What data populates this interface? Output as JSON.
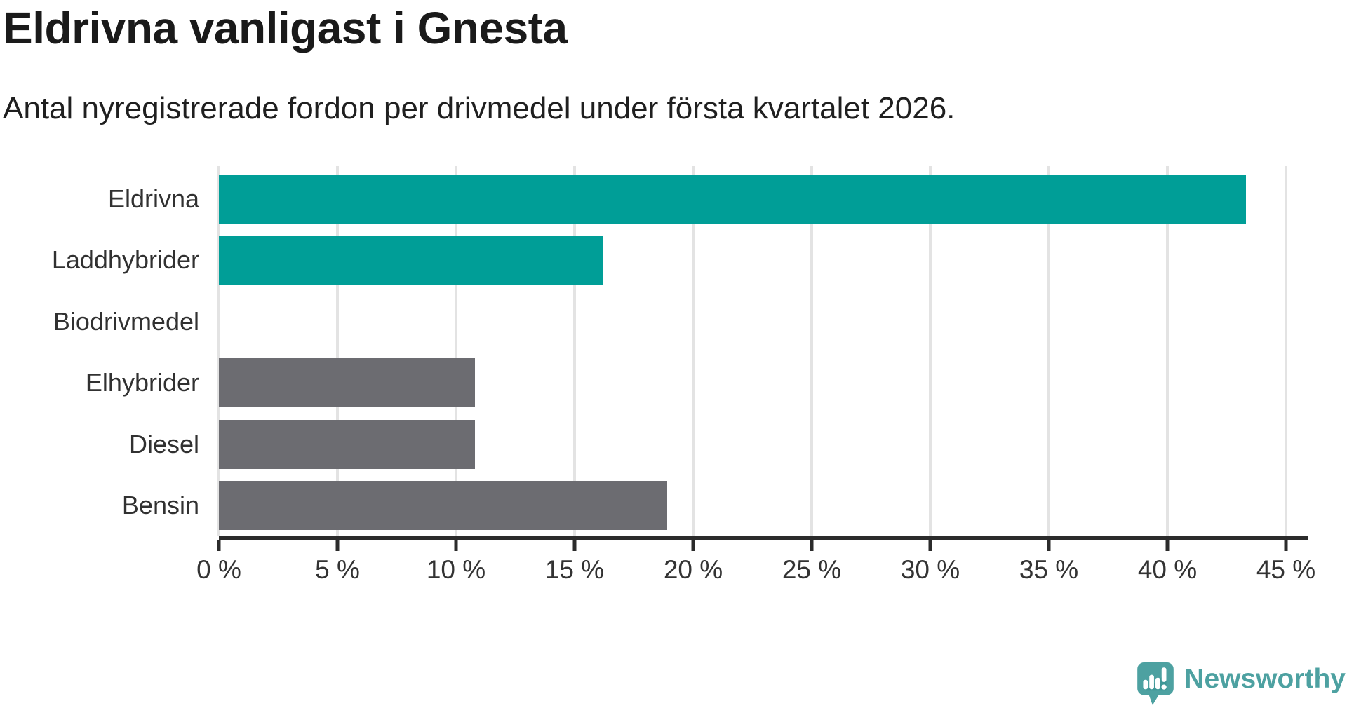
{
  "header": {
    "title": "Eldrivna vanligast i Gnesta",
    "subtitle": "Antal nyregistrerade fordon per drivmedel under första kvartalet 2026."
  },
  "chart_data": {
    "type": "bar",
    "orientation": "horizontal",
    "title": "Eldrivna vanligast i Gnesta",
    "subtitle": "Antal nyregistrerade fordon per drivmedel under första kvartalet 2026.",
    "categories": [
      "Eldrivna",
      "Laddhybrider",
      "Biodrivmedel",
      "Elhybrider",
      "Diesel",
      "Bensin"
    ],
    "values": [
      43.3,
      16.2,
      0,
      10.8,
      10.8,
      18.9
    ],
    "unit": "%",
    "xlabel": "",
    "ylabel": "",
    "xlim": [
      0,
      45
    ],
    "xtick_step": 5,
    "xtick_labels": [
      "0 %",
      "5 %",
      "10 %",
      "15 %",
      "20 %",
      "25 %",
      "30 %",
      "35 %",
      "40 %",
      "45 %"
    ],
    "grid": true,
    "legend": "none",
    "bar_colors": [
      "#009e97",
      "#009e97",
      "#6c6c71",
      "#6c6c71",
      "#6c6c71",
      "#6c6c71"
    ],
    "colors": {
      "highlight": "#009e97",
      "neutral": "#6c6c71",
      "gridline": "#e3e3e3",
      "axis": "#2b2b2b",
      "text": "#313131"
    }
  },
  "branding": {
    "wordmark": "Newsworthy",
    "logo_icon": "newsworthy-speech-bubble-chart-icon",
    "color": "#4da1a1"
  }
}
